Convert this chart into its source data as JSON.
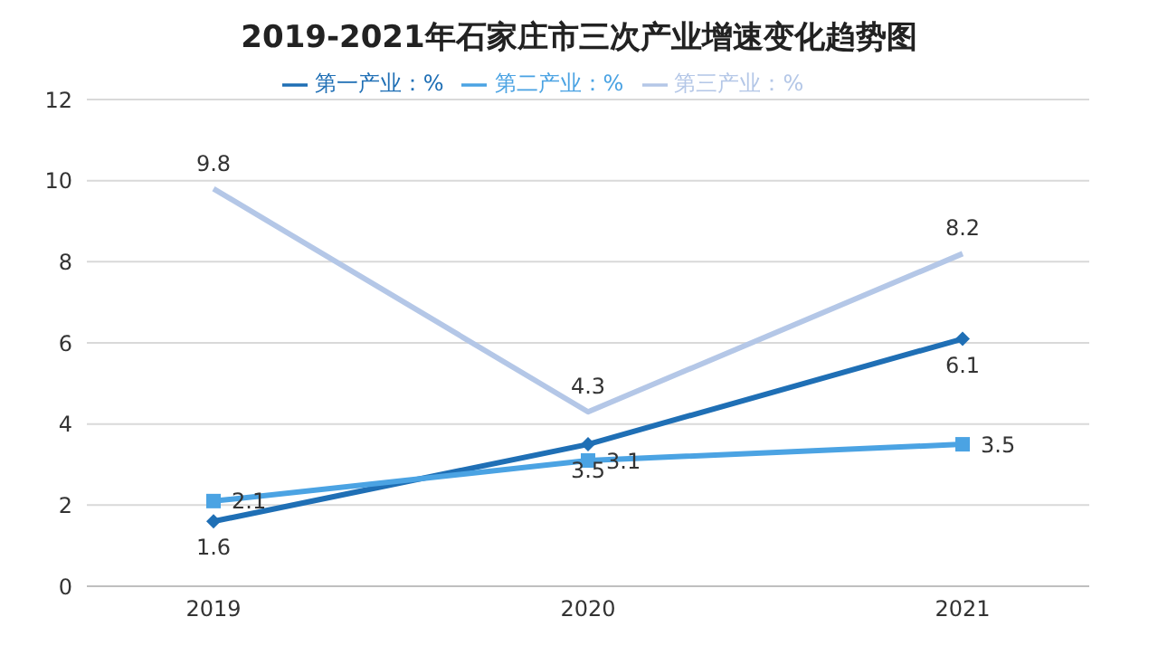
{
  "chart_data": {
    "type": "line",
    "title": "2019-2021年石家庄市三次产业增速变化趋势图",
    "categories": [
      "2019",
      "2020",
      "2021"
    ],
    "series": [
      {
        "name": "第一产业：%",
        "color": "#1f6fb5",
        "values": [
          1.6,
          3.5,
          6.1
        ],
        "marker": "diamond"
      },
      {
        "name": "第二产业：%",
        "color": "#4ba3e3",
        "values": [
          2.1,
          3.1,
          3.5
        ],
        "marker": "square"
      },
      {
        "name": "第三产业：%",
        "color": "#b4c7e7",
        "values": [
          9.8,
          4.3,
          8.2
        ],
        "marker": "none"
      }
    ],
    "ylim": [
      0,
      12
    ],
    "yticks": [
      0,
      2,
      4,
      6,
      8,
      10,
      12
    ],
    "grid": "y",
    "legend": "top",
    "data_labels": true
  }
}
